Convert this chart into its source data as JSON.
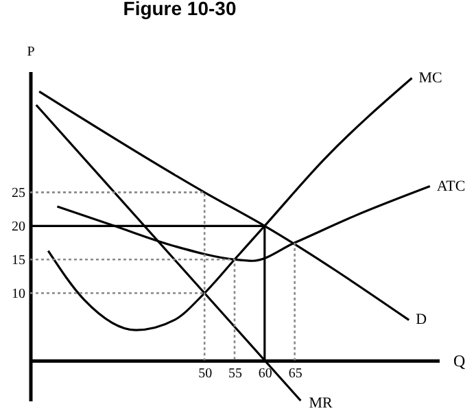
{
  "chart_data": {
    "type": "line",
    "title": "Figure 10-30",
    "xlabel": "Q",
    "ylabel": "P",
    "xlim": [
      21,
      89
    ],
    "ylim": [
      -6,
      43
    ],
    "xticks": [
      50,
      55,
      60,
      65
    ],
    "yticks": [
      10,
      15,
      20,
      25
    ],
    "grid": false,
    "marker": "none",
    "series": [
      {
        "name": "MC",
        "color": "#000000",
        "x": [
          24,
          30,
          38.6,
          45,
          50,
          55,
          60,
          70,
          84.5
        ],
        "values": [
          16.3,
          9,
          4.5,
          6,
          10,
          15,
          20,
          30,
          42
        ]
      },
      {
        "name": "ATC",
        "color": "#000000",
        "x": [
          25.5,
          35,
          45,
          55,
          58,
          65,
          75,
          87.5
        ],
        "values": [
          22.9,
          20,
          17,
          15,
          14.8,
          17.5,
          21.5,
          25.9
        ]
      },
      {
        "name": "D",
        "color": "#000000",
        "x": [
          22.5,
          50,
          60,
          84
        ],
        "values": [
          40,
          25,
          20,
          6
        ]
      },
      {
        "name": "MR",
        "color": "#000000",
        "x": [
          22,
          50,
          60,
          66
        ],
        "values": [
          38,
          10,
          0,
          -6
        ]
      },
      {
        "color": "#888888",
        "line_style": "dotted",
        "x": [
          21,
          50,
          50
        ],
        "values": [
          25,
          25,
          0
        ]
      },
      {
        "color": "#000000",
        "x": [
          21,
          60,
          60
        ],
        "values": [
          20,
          20,
          0
        ]
      },
      {
        "color": "#888888",
        "line_style": "dotted",
        "x": [
          21,
          55,
          55
        ],
        "values": [
          15,
          15,
          0
        ]
      },
      {
        "color": "#888888",
        "line_style": "dotted",
        "x": [
          21,
          50
        ],
        "values": [
          10,
          10
        ]
      },
      {
        "color": "#888888",
        "line_style": "dotted",
        "x": [
          65,
          65
        ],
        "values": [
          17.5,
          0
        ]
      }
    ]
  }
}
